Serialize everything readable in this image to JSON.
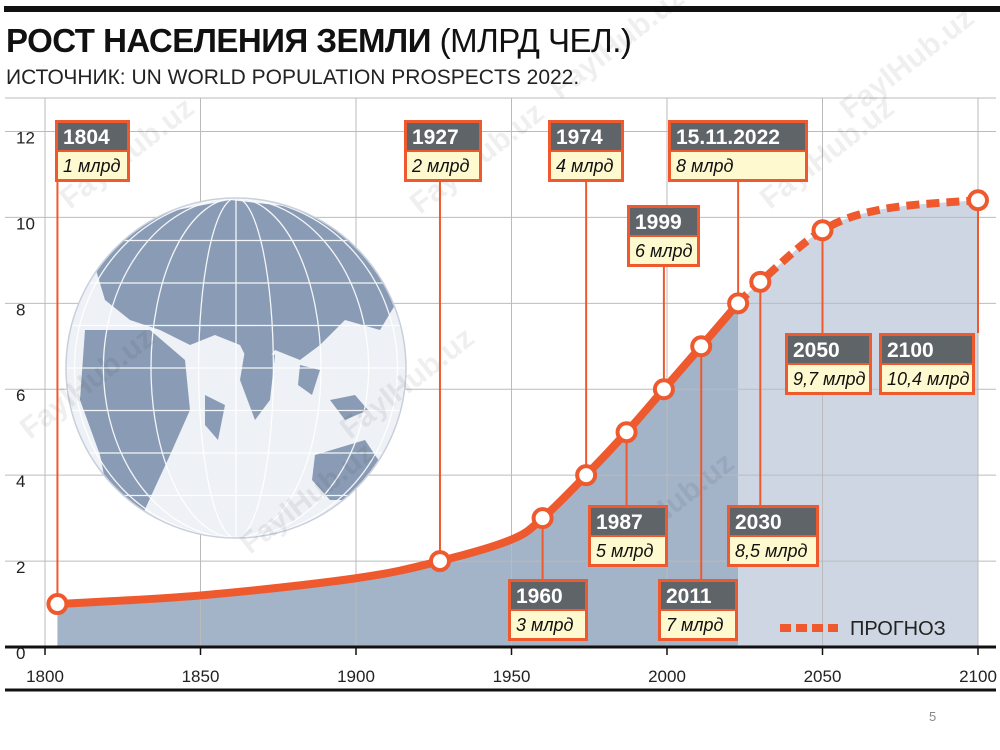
{
  "header": {
    "title_bold": "РОСТ НАСЕЛЕНИЯ ЗЕМЛИ",
    "title_unit": "(МЛРД ЧЕЛ.)",
    "subtitle": "ИСТОЧНИК: UN WORLD POPULATION PROSPECTS 2022."
  },
  "page_number": "5",
  "watermark": "FaylHub.uz",
  "colors": {
    "line": "#ee5a2e",
    "area_actual": "#a3b3c8",
    "area_forecast": "#cdd6e2",
    "label_box": "#5f6469",
    "value_box": "#fff9cf",
    "globe_land": "#8a9cb5",
    "globe_sea": "#eef1f6"
  },
  "chart_data": {
    "type": "line",
    "title": "РОСТ НАСЕЛЕНИЯ ЗЕМЛИ (МЛРД ЧЕЛ.)",
    "xlim": [
      1800,
      2100
    ],
    "ylim": [
      0,
      12.5
    ],
    "x_ticks": [
      "1800",
      "1850",
      "1900",
      "1950",
      "2000",
      "2050",
      "2100"
    ],
    "y_ticks": [
      "0",
      "2",
      "4",
      "6",
      "8",
      "10",
      "12"
    ],
    "grid": true,
    "legend": {
      "label": "ПРОГНОЗ",
      "placement": "bottom-right"
    },
    "series": [
      {
        "name": "",
        "points": [
          [
            1804,
            1.0
          ],
          [
            1850,
            1.2
          ],
          [
            1900,
            1.6
          ],
          [
            1927,
            2.0
          ],
          [
            1950,
            2.5
          ],
          [
            1960,
            3.0
          ],
          [
            1974,
            4.0
          ],
          [
            1987,
            5.0
          ],
          [
            1999,
            6.0
          ],
          [
            2011,
            7.0
          ],
          [
            2022.87,
            8.0
          ]
        ]
      },
      {
        "name": "ПРОГНОЗ",
        "points": [
          [
            2022.87,
            8.0
          ],
          [
            2030,
            8.5
          ],
          [
            2050,
            9.7
          ],
          [
            2070,
            10.2
          ],
          [
            2100,
            10.4
          ]
        ]
      }
    ],
    "annotations": [
      {
        "year": "1804",
        "value": "1 млрд",
        "x": 1804,
        "y": 1.0
      },
      {
        "year": "1927",
        "value": "2 млрд",
        "x": 1927,
        "y": 2.0
      },
      {
        "year": "1960",
        "value": "3 млрд",
        "x": 1960,
        "y": 3.0
      },
      {
        "year": "1974",
        "value": "4 млрд",
        "x": 1974,
        "y": 4.0
      },
      {
        "year": "1987",
        "value": "5 млрд",
        "x": 1987,
        "y": 5.0
      },
      {
        "year": "1999",
        "value": "6 млрд",
        "x": 1999,
        "y": 6.0
      },
      {
        "year": "2011",
        "value": "7 млрд",
        "x": 2011,
        "y": 7.0
      },
      {
        "year": "15.11.2022",
        "value": "8 млрд",
        "x": 2022.87,
        "y": 8.0
      },
      {
        "year": "2030",
        "value": "8,5 млрд",
        "x": 2030,
        "y": 8.5
      },
      {
        "year": "2050",
        "value": "9,7 млрд",
        "x": 2050,
        "y": 9.7
      },
      {
        "year": "2100",
        "value": "10,4 млрд",
        "x": 2100,
        "y": 10.4
      }
    ]
  }
}
